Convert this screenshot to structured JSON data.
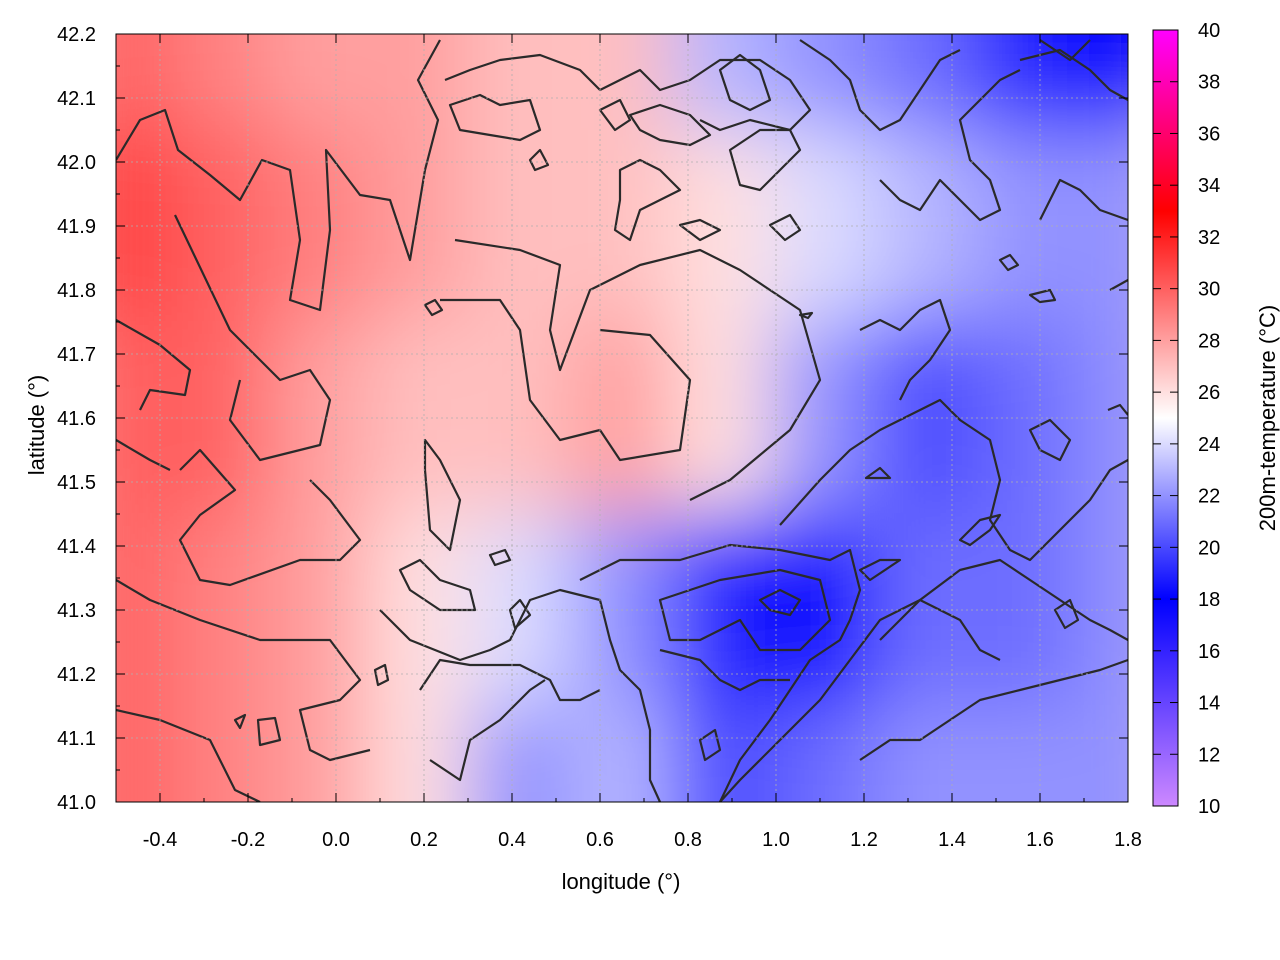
{
  "chart_data": {
    "type": "heatmap",
    "title": "",
    "xlabel": "longitude (°)",
    "ylabel": "latitude (°)",
    "colorbar_label": "200m-temperature (°C)",
    "xlim": [
      -0.5,
      1.8
    ],
    "ylim": [
      41.0,
      42.2
    ],
    "clim": [
      10,
      40
    ],
    "x_ticks": [
      "-0.4",
      "-0.2",
      "0.0",
      "0.2",
      "0.4",
      "0.6",
      "0.8",
      "1.0",
      "1.2",
      "1.4",
      "1.6",
      "1.8"
    ],
    "y_ticks": [
      "41.0",
      "41.1",
      "41.2",
      "41.3",
      "41.4",
      "41.5",
      "41.6",
      "41.7",
      "41.8",
      "41.9",
      "42.0",
      "42.1",
      "42.2"
    ],
    "colorbar_ticks": [
      "10",
      "12",
      "14",
      "16",
      "18",
      "20",
      "22",
      "24",
      "26",
      "28",
      "30",
      "32",
      "34",
      "36",
      "38",
      "40"
    ],
    "grid": true,
    "colormap": [
      {
        "value": 10,
        "color": "#cc88ff"
      },
      {
        "value": 18,
        "color": "#0000ff"
      },
      {
        "value": 25,
        "color": "#ffffff"
      },
      {
        "value": 33,
        "color": "#ff0000"
      },
      {
        "value": 40,
        "color": "#ff00ff"
      }
    ],
    "temperature_field": {
      "lon": [
        -0.5,
        -0.27,
        -0.04,
        0.19,
        0.42,
        0.65,
        0.88,
        1.11,
        1.34,
        1.57,
        1.8
      ],
      "lat": [
        42.2,
        41.9,
        41.6,
        41.3,
        41.0
      ],
      "values": [
        [
          30,
          29,
          28,
          28,
          27,
          27,
          23,
          22,
          21,
          19,
          18
        ],
        [
          31,
          30,
          29,
          28,
          27,
          27,
          26,
          24,
          23,
          22,
          22
        ],
        [
          30,
          30,
          28,
          27,
          27,
          28,
          26,
          22,
          20,
          21,
          22
        ],
        [
          30,
          29,
          28,
          26,
          24,
          22,
          19,
          18,
          21,
          21,
          22
        ],
        [
          30,
          29,
          28,
          26,
          22,
          23,
          20,
          21,
          22,
          22,
          22
        ]
      ]
    }
  }
}
